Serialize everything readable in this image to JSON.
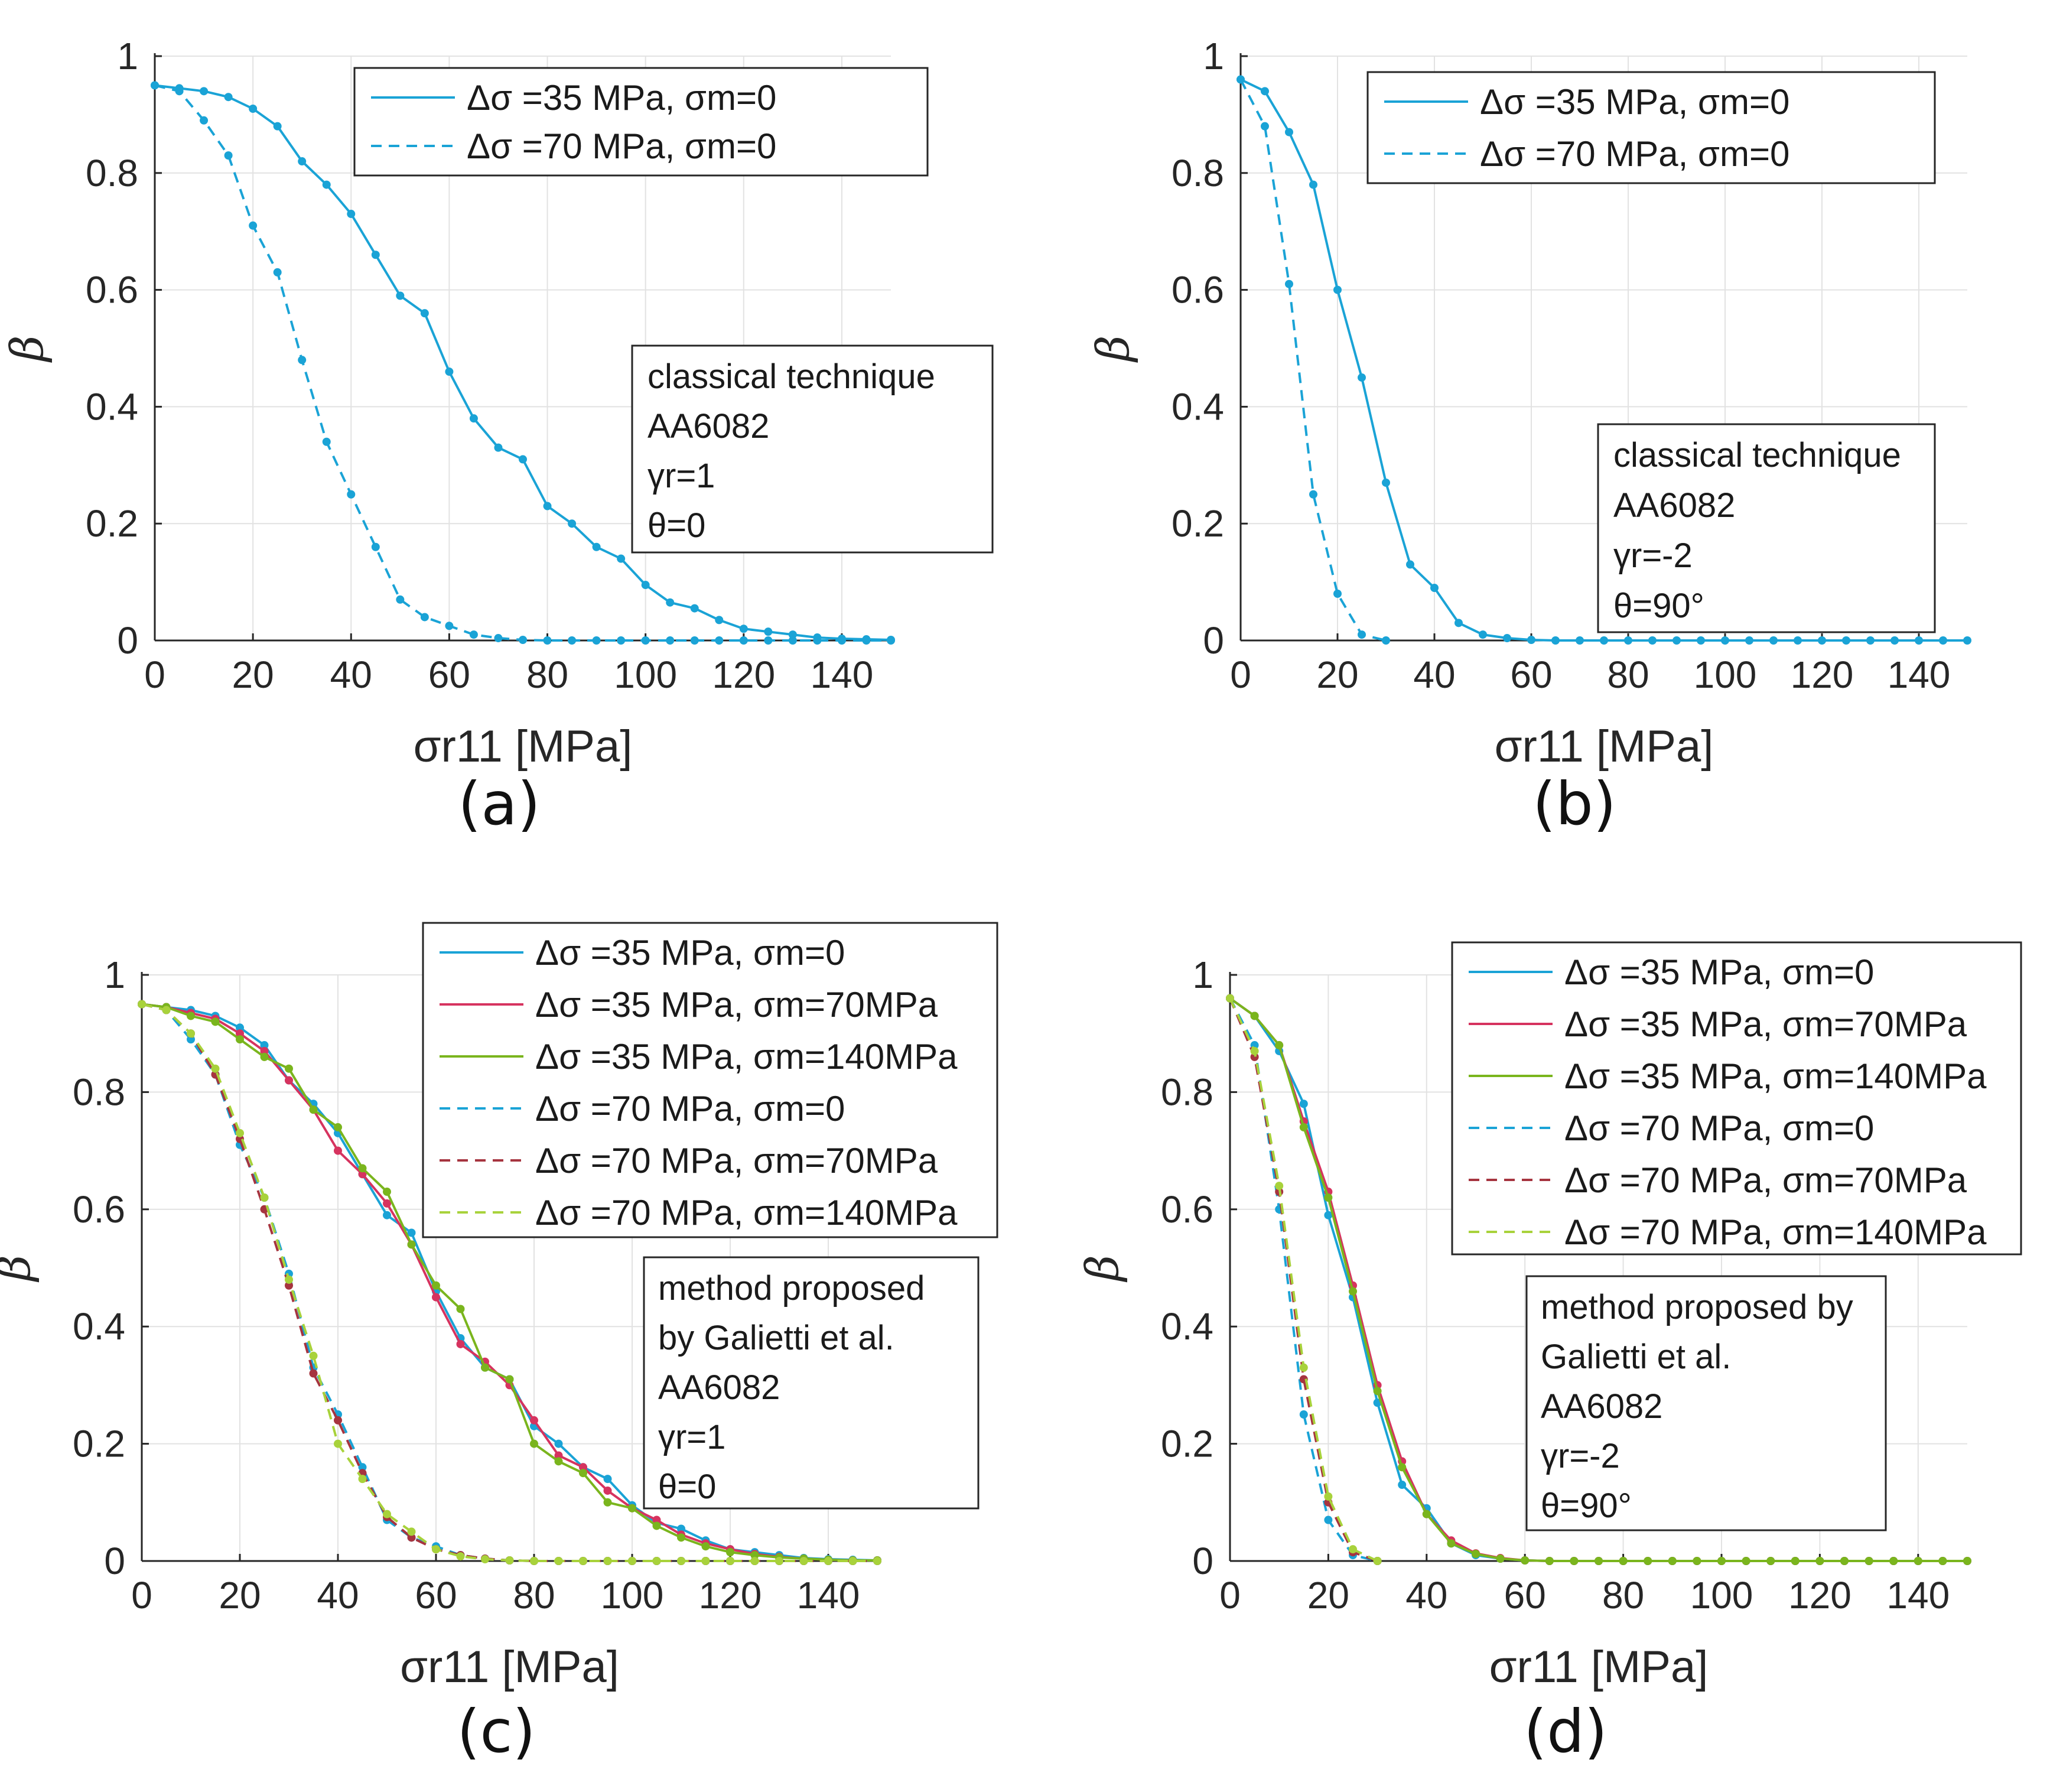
{
  "colors": {
    "blue": "#1aa3d6",
    "red": "#d6335f",
    "green": "#7ab51d",
    "brown": "#a6343f",
    "lightgreen": "#a8d23b"
  },
  "chart_data": [
    {
      "id": "a",
      "type": "line",
      "panel_label": "(a)",
      "xlabel": "σr11 [MPa]",
      "ylabel": "β",
      "xlim": [
        0,
        150
      ],
      "ylim": [
        0,
        1
      ],
      "xticks": [
        "0",
        "20",
        "40",
        "60",
        "80",
        "100",
        "120",
        "140"
      ],
      "yticks": [
        "0",
        "0.2",
        "0.4",
        "0.6",
        "0.8",
        "1"
      ],
      "grid": true,
      "legend_position": "top-right",
      "series": [
        {
          "name": "Δσ =35 MPa, σm=0",
          "color": "blue",
          "dash": "solid",
          "x": [
            0,
            5,
            10,
            15,
            20,
            25,
            30,
            35,
            40,
            45,
            50,
            55,
            60,
            65,
            70,
            75,
            80,
            85,
            90,
            95,
            100,
            105,
            110,
            115,
            120,
            125,
            130,
            135,
            140,
            145,
            150
          ],
          "y": [
            0.95,
            0.945,
            0.94,
            0.93,
            0.91,
            0.88,
            0.82,
            0.78,
            0.73,
            0.66,
            0.59,
            0.56,
            0.46,
            0.38,
            0.33,
            0.31,
            0.23,
            0.2,
            0.16,
            0.14,
            0.095,
            0.065,
            0.055,
            0.035,
            0.02,
            0.015,
            0.01,
            0.005,
            0.003,
            0.002,
            0.001
          ]
        },
        {
          "name": "Δσ =70 MPa, σm=0",
          "color": "blue",
          "dash": "dashed",
          "x": [
            0,
            5,
            10,
            15,
            20,
            25,
            30,
            35,
            40,
            45,
            50,
            55,
            60,
            65,
            70,
            75,
            80,
            85,
            90,
            95,
            100,
            105,
            110,
            115,
            120,
            125,
            130,
            135,
            140,
            145,
            150
          ],
          "y": [
            0.95,
            0.94,
            0.89,
            0.83,
            0.71,
            0.63,
            0.48,
            0.34,
            0.25,
            0.16,
            0.07,
            0.04,
            0.025,
            0.01,
            0.004,
            0.001,
            0,
            0,
            0,
            0,
            0,
            0,
            0,
            0,
            0,
            0,
            0,
            0,
            0,
            0,
            0
          ]
        }
      ],
      "annotation": [
        "classical technique",
        "AA6082",
        "γr=1",
        "θ=0"
      ]
    },
    {
      "id": "b",
      "type": "line",
      "panel_label": "(b)",
      "xlabel": "σr11 [MPa]",
      "ylabel": "β",
      "xlim": [
        0,
        150
      ],
      "ylim": [
        0,
        1
      ],
      "xticks": [
        "0",
        "20",
        "40",
        "60",
        "80",
        "100",
        "120",
        "140"
      ],
      "yticks": [
        "0",
        "0.2",
        "0.4",
        "0.6",
        "0.8",
        "1"
      ],
      "grid": true,
      "legend_position": "top-right",
      "series": [
        {
          "name": "Δσ =35 MPa, σm=0",
          "color": "blue",
          "dash": "solid",
          "x": [
            0,
            5,
            10,
            15,
            20,
            25,
            30,
            35,
            40,
            45,
            50,
            55,
            60,
            65,
            70,
            75,
            80,
            85,
            90,
            95,
            100,
            105,
            110,
            115,
            120,
            125,
            130,
            135,
            140,
            145,
            150
          ],
          "y": [
            0.96,
            0.94,
            0.87,
            0.78,
            0.6,
            0.45,
            0.27,
            0.13,
            0.09,
            0.03,
            0.01,
            0.004,
            0.001,
            0,
            0,
            0,
            0,
            0,
            0,
            0,
            0,
            0,
            0,
            0,
            0,
            0,
            0,
            0,
            0,
            0,
            0
          ]
        },
        {
          "name": "Δσ =70 MPa, σm=0",
          "color": "blue",
          "dash": "dashed",
          "x": [
            0,
            5,
            10,
            15,
            20,
            25,
            30
          ],
          "y": [
            0.96,
            0.88,
            0.61,
            0.25,
            0.08,
            0.01,
            0
          ]
        }
      ],
      "annotation": [
        "classical technique",
        "AA6082",
        "γr=-2",
        "θ=90°"
      ]
    },
    {
      "id": "c",
      "type": "line",
      "panel_label": "(c)",
      "xlabel": "σr11 [MPa]",
      "ylabel": "β",
      "xlim": [
        0,
        150
      ],
      "ylim": [
        0,
        1
      ],
      "xticks": [
        "0",
        "20",
        "40",
        "60",
        "80",
        "100",
        "120",
        "140"
      ],
      "yticks": [
        "0",
        "0.2",
        "0.4",
        "0.6",
        "0.8",
        "1"
      ],
      "grid": true,
      "legend_position": "top-right",
      "series": [
        {
          "name": "Δσ =35 MPa, σm=0",
          "color": "blue",
          "dash": "solid",
          "x": [
            0,
            5,
            10,
            15,
            20,
            25,
            30,
            35,
            40,
            45,
            50,
            55,
            60,
            65,
            70,
            75,
            80,
            85,
            90,
            95,
            100,
            105,
            110,
            115,
            120,
            125,
            130,
            135,
            140,
            145,
            150
          ],
          "y": [
            0.95,
            0.945,
            0.94,
            0.93,
            0.91,
            0.88,
            0.82,
            0.78,
            0.73,
            0.66,
            0.59,
            0.56,
            0.46,
            0.38,
            0.33,
            0.31,
            0.23,
            0.2,
            0.16,
            0.14,
            0.095,
            0.065,
            0.055,
            0.035,
            0.02,
            0.015,
            0.01,
            0.005,
            0.003,
            0.002,
            0.001
          ]
        },
        {
          "name": "Δσ =35 MPa, σm=70MPa",
          "color": "red",
          "dash": "solid",
          "x": [
            0,
            5,
            10,
            15,
            20,
            25,
            30,
            35,
            40,
            45,
            50,
            55,
            60,
            65,
            70,
            75,
            80,
            85,
            90,
            95,
            100,
            105,
            110,
            115,
            120,
            125,
            130,
            135,
            140,
            145,
            150
          ],
          "y": [
            0.95,
            0.945,
            0.935,
            0.925,
            0.9,
            0.87,
            0.82,
            0.77,
            0.7,
            0.66,
            0.61,
            0.54,
            0.45,
            0.37,
            0.34,
            0.3,
            0.24,
            0.18,
            0.16,
            0.12,
            0.09,
            0.07,
            0.045,
            0.03,
            0.02,
            0.012,
            0.007,
            0.004,
            0.002,
            0.001,
            0.001
          ]
        },
        {
          "name": "Δσ =35 MPa, σm=140MPa",
          "color": "green",
          "dash": "solid",
          "x": [
            0,
            5,
            10,
            15,
            20,
            25,
            30,
            35,
            40,
            45,
            50,
            55,
            60,
            65,
            70,
            75,
            80,
            85,
            90,
            95,
            100,
            105,
            110,
            115,
            120,
            125,
            130,
            135,
            140,
            145,
            150
          ],
          "y": [
            0.95,
            0.945,
            0.93,
            0.92,
            0.89,
            0.86,
            0.84,
            0.77,
            0.74,
            0.67,
            0.63,
            0.54,
            0.47,
            0.43,
            0.33,
            0.31,
            0.2,
            0.17,
            0.15,
            0.1,
            0.09,
            0.06,
            0.04,
            0.025,
            0.015,
            0.01,
            0.006,
            0.004,
            0.002,
            0.001,
            0.001
          ]
        },
        {
          "name": "Δσ =70 MPa, σm=0",
          "color": "blue",
          "dash": "dashed",
          "x": [
            0,
            5,
            10,
            15,
            20,
            25,
            30,
            35,
            40,
            45,
            50,
            55,
            60,
            65,
            70,
            75,
            80,
            85,
            90,
            95,
            100,
            105,
            110,
            115,
            120,
            125,
            130,
            135,
            140,
            145,
            150
          ],
          "y": [
            0.95,
            0.94,
            0.89,
            0.83,
            0.71,
            0.62,
            0.49,
            0.33,
            0.25,
            0.16,
            0.07,
            0.04,
            0.025,
            0.01,
            0.004,
            0.001,
            0,
            0,
            0,
            0,
            0,
            0,
            0,
            0,
            0,
            0,
            0,
            0,
            0,
            0,
            0
          ]
        },
        {
          "name": "Δσ =70 MPa, σm=70MPa",
          "color": "brown",
          "dash": "dashed",
          "x": [
            0,
            5,
            10,
            15,
            20,
            25,
            30,
            35,
            40,
            45,
            50,
            55,
            60,
            65,
            70,
            75,
            80,
            85,
            90,
            95,
            100,
            105,
            110,
            115,
            120,
            125,
            130,
            135,
            140,
            145,
            150
          ],
          "y": [
            0.95,
            0.94,
            0.9,
            0.83,
            0.72,
            0.6,
            0.47,
            0.32,
            0.24,
            0.15,
            0.075,
            0.04,
            0.02,
            0.01,
            0.004,
            0.001,
            0,
            0,
            0,
            0,
            0,
            0,
            0,
            0,
            0,
            0,
            0,
            0,
            0,
            0,
            0
          ]
        },
        {
          "name": "Δσ =70 MPa, σm=140MPa",
          "color": "lightgreen",
          "dash": "dashed",
          "x": [
            0,
            5,
            10,
            15,
            20,
            25,
            30,
            35,
            40,
            45,
            50,
            55,
            60,
            65,
            70,
            75,
            80,
            85,
            90,
            95,
            100,
            105,
            110,
            115,
            120,
            125,
            130,
            135,
            140,
            145,
            150
          ],
          "y": [
            0.95,
            0.94,
            0.9,
            0.84,
            0.73,
            0.62,
            0.48,
            0.35,
            0.2,
            0.14,
            0.08,
            0.05,
            0.02,
            0.008,
            0.003,
            0.001,
            0,
            0,
            0,
            0,
            0,
            0,
            0,
            0,
            0,
            0,
            0,
            0,
            0,
            0,
            0
          ]
        }
      ],
      "annotation": [
        "method proposed",
        "by Galietti et al.",
        "AA6082",
        "γr=1",
        "θ=0"
      ]
    },
    {
      "id": "d",
      "type": "line",
      "panel_label": "(d)",
      "xlabel": "σr11 [MPa]",
      "ylabel": "β",
      "xlim": [
        0,
        150
      ],
      "ylim": [
        0,
        1
      ],
      "xticks": [
        "0",
        "20",
        "40",
        "60",
        "80",
        "100",
        "120",
        "140"
      ],
      "yticks": [
        "0",
        "0.2",
        "0.4",
        "0.6",
        "0.8",
        "1"
      ],
      "grid": true,
      "legend_position": "top-right",
      "series": [
        {
          "name": "Δσ =35 MPa, σm=0",
          "color": "blue",
          "dash": "solid",
          "x": [
            0,
            5,
            10,
            15,
            20,
            25,
            30,
            35,
            40,
            45,
            50,
            55,
            60,
            65,
            70,
            75,
            80,
            85,
            90,
            95,
            100,
            105,
            110,
            115,
            120,
            125,
            130,
            135,
            140,
            145,
            150
          ],
          "y": [
            0.96,
            0.93,
            0.87,
            0.78,
            0.59,
            0.45,
            0.27,
            0.13,
            0.09,
            0.03,
            0.01,
            0.004,
            0.001,
            0,
            0,
            0,
            0,
            0,
            0,
            0,
            0,
            0,
            0,
            0,
            0,
            0,
            0,
            0,
            0,
            0,
            0
          ]
        },
        {
          "name": "Δσ =35 MPa, σm=70MPa",
          "color": "red",
          "dash": "solid",
          "x": [
            0,
            5,
            10,
            15,
            20,
            25,
            30,
            35,
            40,
            45,
            50,
            55,
            60,
            65,
            70,
            75,
            80,
            85,
            90,
            95,
            100,
            105,
            110,
            115,
            120,
            125,
            130,
            135,
            140,
            145,
            150
          ],
          "y": [
            0.96,
            0.93,
            0.88,
            0.75,
            0.63,
            0.47,
            0.3,
            0.17,
            0.08,
            0.035,
            0.013,
            0.005,
            0.001,
            0,
            0,
            0,
            0,
            0,
            0,
            0,
            0,
            0,
            0,
            0,
            0,
            0,
            0,
            0,
            0,
            0,
            0
          ]
        },
        {
          "name": "Δσ =35 MPa, σm=140MPa",
          "color": "green",
          "dash": "solid",
          "x": [
            0,
            5,
            10,
            15,
            20,
            25,
            30,
            35,
            40,
            45,
            50,
            55,
            60,
            65,
            70,
            75,
            80,
            85,
            90,
            95,
            100,
            105,
            110,
            115,
            120,
            125,
            130,
            135,
            140,
            145,
            150
          ],
          "y": [
            0.96,
            0.93,
            0.88,
            0.74,
            0.62,
            0.46,
            0.29,
            0.16,
            0.08,
            0.03,
            0.012,
            0.004,
            0.001,
            0,
            0,
            0,
            0,
            0,
            0,
            0,
            0,
            0,
            0,
            0,
            0,
            0,
            0,
            0,
            0,
            0,
            0
          ]
        },
        {
          "name": "Δσ =70 MPa, σm=0",
          "color": "blue",
          "dash": "dashed",
          "x": [
            0,
            5,
            10,
            15,
            20,
            25,
            30
          ],
          "y": [
            0.96,
            0.88,
            0.6,
            0.25,
            0.07,
            0.01,
            0
          ]
        },
        {
          "name": "Δσ =70 MPa, σm=70MPa",
          "color": "brown",
          "dash": "dashed",
          "x": [
            0,
            5,
            10,
            15,
            20,
            25,
            30
          ],
          "y": [
            0.96,
            0.86,
            0.63,
            0.31,
            0.1,
            0.015,
            0
          ]
        },
        {
          "name": "Δσ =70 MPa, σm=140MPa",
          "color": "lightgreen",
          "dash": "dashed",
          "x": [
            0,
            5,
            10,
            15,
            20,
            25,
            30
          ],
          "y": [
            0.96,
            0.87,
            0.64,
            0.33,
            0.11,
            0.02,
            0
          ]
        }
      ],
      "annotation": [
        "method proposed by",
        "Galietti et al.",
        "AA6082",
        "γr=-2",
        "θ=90°"
      ]
    }
  ]
}
